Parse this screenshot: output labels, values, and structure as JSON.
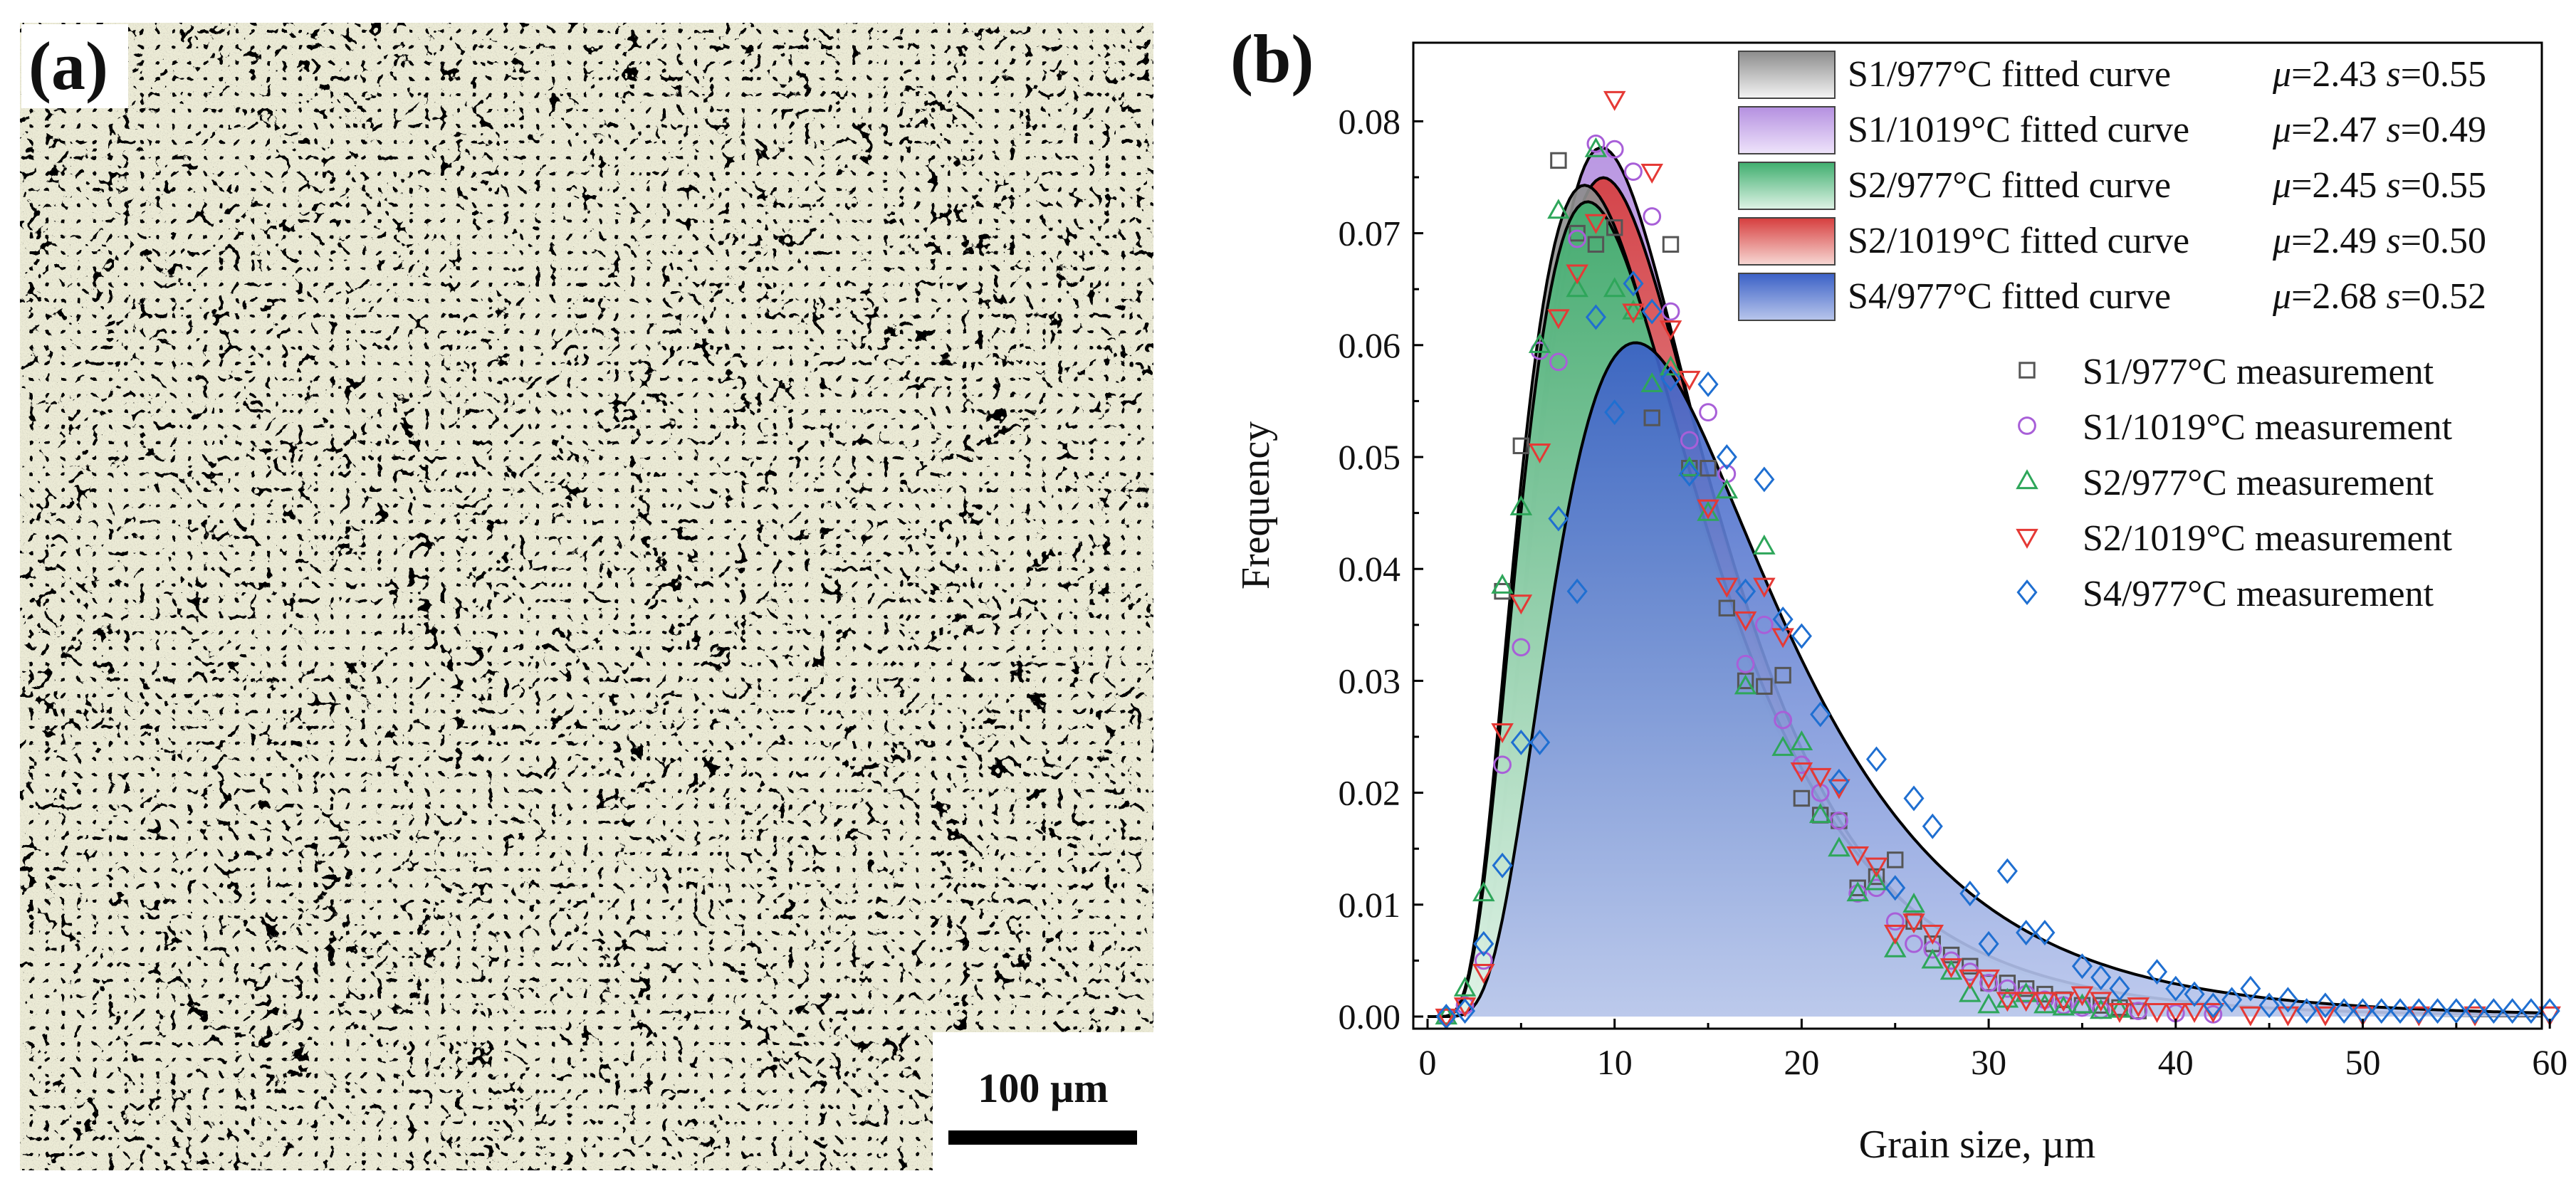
{
  "panel_a": {
    "label": "(a)",
    "scale_bar_label": "100 µm"
  },
  "panel_b": {
    "label": "(b)"
  },
  "chart_data": {
    "type": "area",
    "title": "",
    "xlabel": "Grain size, µm",
    "ylabel": "Frequency",
    "xlim": [
      0,
      60
    ],
    "ylim": [
      0,
      0.084
    ],
    "x_ticks": [
      0,
      10,
      20,
      30,
      40,
      50,
      60
    ],
    "x_tick_labels": [
      "0",
      "10",
      "20",
      "30",
      "40",
      "50",
      "60"
    ],
    "y_ticks": [
      0,
      0.01,
      0.02,
      0.03,
      0.04,
      0.05,
      0.06,
      0.07,
      0.08
    ],
    "y_tick_labels": [
      "0.00",
      "0.01",
      "0.02",
      "0.03",
      "0.04",
      "0.05",
      "0.06",
      "0.07",
      "0.08"
    ],
    "fitted_curves": [
      {
        "name": "S1/977°C fitted curve",
        "mu_label": "μ=2.43",
        "s_label": "s=0.55",
        "mu": 2.43,
        "s": 0.55,
        "color_top": "#8c8c8c",
        "color_bottom": "#f4f4f4"
      },
      {
        "name": "S1/1019°C fitted curve",
        "mu_label": "μ=2.47",
        "s_label": "s=0.49",
        "mu": 2.47,
        "s": 0.49,
        "color_top": "#b48fe0",
        "color_bottom": "#efe4fb"
      },
      {
        "name": "S2/977°C fitted curve",
        "mu_label": "μ=2.45",
        "s_label": "s=0.55",
        "mu": 2.45,
        "s": 0.55,
        "color_top": "#3fae6e",
        "color_bottom": "#dff3e6"
      },
      {
        "name": "S2/1019°C fitted curve",
        "mu_label": "μ=2.49",
        "s_label": "s=0.50",
        "mu": 2.49,
        "s": 0.5,
        "color_top": "#d63d3d",
        "color_bottom": "#f7d8d4"
      },
      {
        "name": "S4/977°C fitted curve",
        "mu_label": "μ=2.68",
        "s_label": "s=0.52",
        "mu": 2.68,
        "s": 0.52,
        "color_top": "#3a60c6",
        "color_bottom": "#b9c6ec"
      }
    ],
    "series": [
      {
        "name": "S1/977°C measurement",
        "marker": "square",
        "color": "#555555",
        "x": [
          4,
          5,
          7,
          8,
          9,
          10,
          12,
          13,
          14,
          15,
          16,
          17,
          18,
          19,
          20,
          21,
          22,
          23,
          24,
          25,
          26,
          27,
          28,
          29,
          30,
          31,
          32,
          33,
          34,
          35,
          36,
          37,
          38
        ],
        "y": [
          0.038,
          0.051,
          0.0765,
          0.07,
          0.069,
          0.0705,
          0.0535,
          0.069,
          0.049,
          0.049,
          0.0365,
          0.03,
          0.0295,
          0.0305,
          0.0195,
          0.018,
          0.0175,
          0.0115,
          0.0125,
          0.014,
          0.0085,
          0.0065,
          0.0055,
          0.0045,
          0.003,
          0.003,
          0.0025,
          0.002,
          0.0015,
          0.001,
          0.001,
          0.0008,
          0.0005
        ]
      },
      {
        "name": "S1/1019°C measurement",
        "marker": "circle",
        "color": "#a85fd8",
        "x": [
          1,
          2,
          3,
          4,
          5,
          6,
          7,
          8,
          9,
          10,
          11,
          12,
          13,
          14,
          15,
          16,
          17,
          18,
          19,
          20,
          21,
          22,
          23,
          24,
          25,
          26,
          27,
          28,
          29,
          30,
          31,
          32,
          33,
          34,
          35,
          36,
          38,
          40,
          42
        ],
        "y": [
          0.0,
          0.001,
          0.005,
          0.0225,
          0.033,
          0.0595,
          0.0585,
          0.0695,
          0.078,
          0.0775,
          0.0755,
          0.0715,
          0.063,
          0.0515,
          0.054,
          0.0485,
          0.0315,
          0.035,
          0.0265,
          0.0225,
          0.02,
          0.0175,
          0.011,
          0.0115,
          0.0085,
          0.0065,
          0.006,
          0.005,
          0.004,
          0.003,
          0.0025,
          0.002,
          0.0015,
          0.001,
          0.0008,
          0.0006,
          0.0005,
          0.0003,
          0.0002
        ]
      },
      {
        "name": "S2/977°C measurement",
        "marker": "triangle-up",
        "color": "#2ea65a",
        "x": [
          1,
          2,
          3,
          4,
          5,
          6,
          7,
          8,
          9,
          10,
          11,
          12,
          13,
          14,
          15,
          16,
          17,
          18,
          19,
          20,
          21,
          22,
          23,
          24,
          25,
          26,
          27,
          28,
          29,
          30,
          31,
          32,
          33,
          34,
          35,
          36,
          37
        ],
        "y": [
          0.0,
          0.0025,
          0.011,
          0.0385,
          0.0455,
          0.06,
          0.072,
          0.065,
          0.0775,
          0.065,
          0.063,
          0.0565,
          0.058,
          0.049,
          0.045,
          0.047,
          0.0295,
          0.042,
          0.024,
          0.0245,
          0.018,
          0.015,
          0.011,
          0.012,
          0.006,
          0.01,
          0.005,
          0.004,
          0.002,
          0.001,
          0.0015,
          0.002,
          0.001,
          0.0008,
          0.001,
          0.0005,
          0.0006
        ]
      },
      {
        "name": "S2/1019°C measurement",
        "marker": "triangle-down",
        "color": "#e53935",
        "x": [
          1,
          2,
          3,
          4,
          5,
          6,
          7,
          8,
          9,
          10,
          11,
          12,
          13,
          14,
          15,
          16,
          17,
          18,
          19,
          20,
          21,
          22,
          23,
          24,
          25,
          26,
          27,
          28,
          29,
          30,
          31,
          32,
          33,
          34,
          35,
          36,
          37,
          38,
          39,
          40,
          41,
          42,
          44,
          46,
          48,
          50,
          53,
          56,
          60
        ],
        "y": [
          0.0,
          0.001,
          0.004,
          0.0255,
          0.037,
          0.0505,
          0.0625,
          0.0665,
          0.071,
          0.082,
          0.063,
          0.0755,
          0.0615,
          0.057,
          0.0455,
          0.0385,
          0.0355,
          0.0385,
          0.034,
          0.022,
          0.0215,
          0.0205,
          0.0145,
          0.0135,
          0.0075,
          0.0085,
          0.0075,
          0.0045,
          0.0035,
          0.0035,
          0.0015,
          0.0015,
          0.0015,
          0.0015,
          0.002,
          0.0015,
          0.0005,
          0.001,
          0.0005,
          0.0005,
          0.0005,
          0.0005,
          0.0002,
          0.0002,
          0.0002,
          0.0002,
          0.0002,
          0.0002,
          0.0002
        ]
      },
      {
        "name": "S4/977°C measurement",
        "marker": "diamond",
        "color": "#1f6fd1",
        "x": [
          1,
          2,
          3,
          4,
          5,
          6,
          7,
          8,
          9,
          10,
          11,
          12,
          13,
          14,
          15,
          16,
          17,
          18,
          19,
          20,
          21,
          22,
          24,
          25,
          26,
          27,
          29,
          30,
          31,
          32,
          33,
          35,
          36,
          37,
          39,
          40,
          41,
          42,
          43,
          44,
          45,
          46,
          47,
          48,
          49,
          50,
          51,
          52,
          53,
          54,
          55,
          56,
          57,
          58,
          59,
          60
        ],
        "y": [
          0.0,
          0.0005,
          0.0065,
          0.0135,
          0.0245,
          0.0245,
          0.0445,
          0.038,
          0.0625,
          0.054,
          0.0655,
          0.063,
          0.057,
          0.0485,
          0.0565,
          0.05,
          0.038,
          0.048,
          0.0355,
          0.034,
          0.027,
          0.021,
          0.023,
          0.0115,
          0.0195,
          0.017,
          0.011,
          0.0065,
          0.013,
          0.0075,
          0.0075,
          0.0045,
          0.0035,
          0.0025,
          0.004,
          0.0025,
          0.002,
          0.001,
          0.0015,
          0.0025,
          0.001,
          0.0015,
          0.0005,
          0.001,
          0.0005,
          0.0005,
          0.0005,
          0.0005,
          0.0005,
          0.0005,
          0.0005,
          0.0005,
          0.0005,
          0.0005,
          0.0005,
          0.0005
        ]
      }
    ]
  }
}
